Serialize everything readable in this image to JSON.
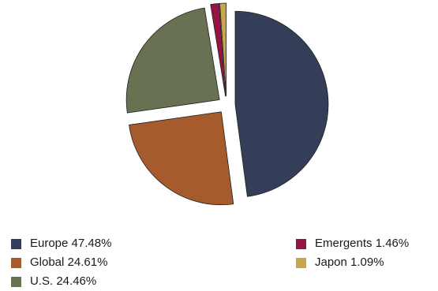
{
  "chart_data": {
    "type": "pie",
    "title": "",
    "slices": [
      {
        "label": "Europe 47.48%",
        "name": "Europe",
        "value": 47.48,
        "color": "#343e59"
      },
      {
        "label": "Global 24.61%",
        "name": "Global",
        "value": 24.61,
        "color": "#a65b2c"
      },
      {
        "label": "U.S. 24.46%",
        "name": "U.S.",
        "value": 24.46,
        "color": "#687152"
      },
      {
        "label": "Emergents 1.46%",
        "name": "Emergents",
        "value": 1.46,
        "color": "#941446"
      },
      {
        "label": "Japon 1.09%",
        "name": "Japon",
        "value": 1.09,
        "color": "#c9a54d"
      }
    ],
    "legend_position": "bottom",
    "exploded": true
  }
}
